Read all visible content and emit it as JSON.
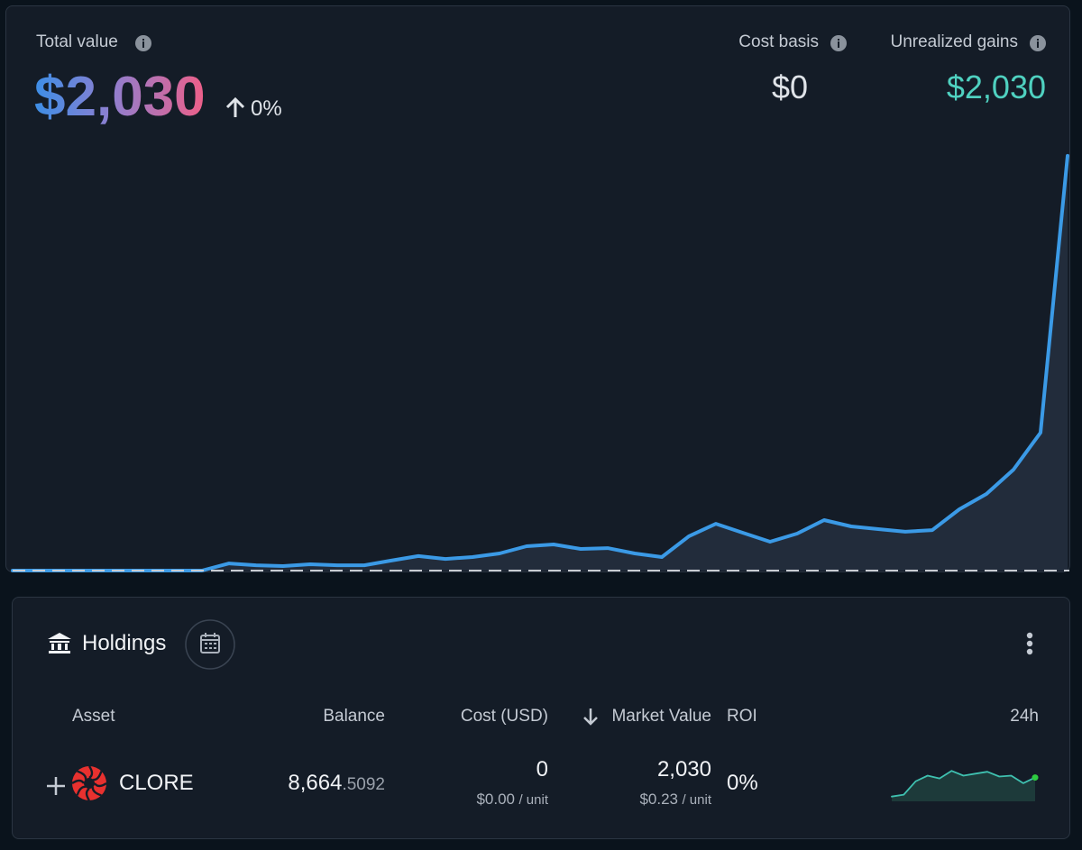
{
  "header": {
    "total_value_label": "Total value",
    "total_value": "$2,030",
    "change": "0%",
    "cost_basis_label": "Cost basis",
    "cost_basis": "$0",
    "unrealized_label": "Unrealized gains",
    "unrealized": "$2,030"
  },
  "chart_data": {
    "type": "line",
    "color": "#3b9ae6",
    "values": [
      0,
      0,
      0,
      0,
      0,
      0,
      0,
      0,
      35,
      26,
      22,
      31,
      26,
      26,
      49,
      71,
      57,
      66,
      84,
      119,
      128,
      106,
      110,
      84,
      66,
      168,
      229,
      185,
      141,
      181,
      247,
      216,
      203,
      190,
      198,
      300,
      375,
      494,
      675,
      2030
    ],
    "ylim": [
      0,
      2100
    ]
  },
  "holdings": {
    "title": "Holdings",
    "columns": [
      "Asset",
      "Balance",
      "Cost (USD)",
      "Market Value",
      "ROI",
      "24h"
    ],
    "rows": [
      {
        "asset": "CLORE",
        "balance_int": "8,664",
        "balance_dec": ".5092",
        "cost": "0",
        "cost_unit_price": "$0.00",
        "cost_unit": "/ unit",
        "market_value": "2,030",
        "market_unit_price": "$0.23",
        "market_unit": "/ unit",
        "roi": "0%",
        "spark_24h": {
          "type": "line",
          "color": "#3fc1b0",
          "values": [
            0.21,
            0.212,
            0.226,
            0.232,
            0.229,
            0.237,
            0.232,
            0.234,
            0.236,
            0.231,
            0.232,
            0.224,
            0.23
          ],
          "ylim": [
            0.205,
            0.24
          ]
        }
      }
    ]
  }
}
